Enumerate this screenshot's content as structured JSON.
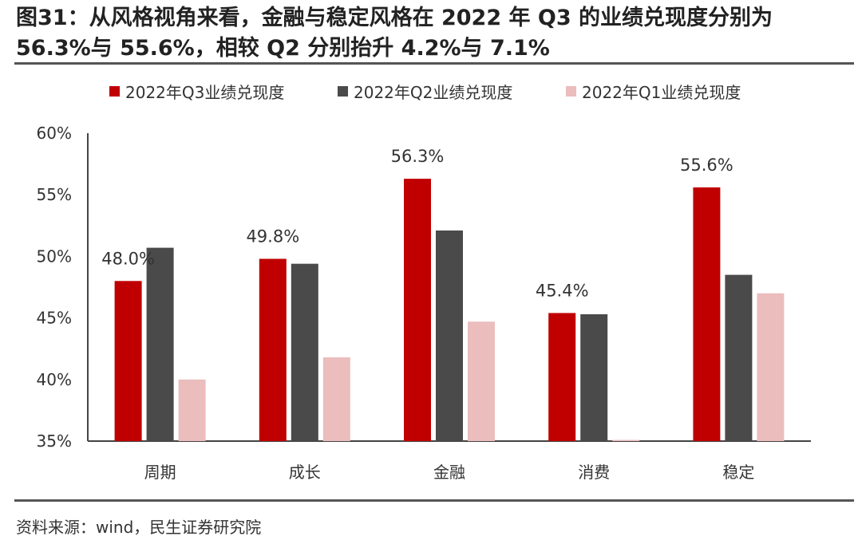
{
  "header": {
    "title": "图31：从风格视角来看，金融与稳定风格在 2022 年 Q3 的业绩兑现度分别为 56.3%与 55.6%，相较 Q2 分别抬升 4.2%与 7.1%"
  },
  "footer": {
    "source": "资料来源：wind，民生证券研究院"
  },
  "chart_data": {
    "type": "bar",
    "title": "",
    "xlabel": "",
    "ylabel": "",
    "categories": [
      "周期",
      "成长",
      "金融",
      "消费",
      "稳定"
    ],
    "series": [
      {
        "name": "2022年Q3业绩兑现度",
        "color": "#c00000",
        "values": [
          48.0,
          49.8,
          56.3,
          45.4,
          55.6
        ]
      },
      {
        "name": "2022年Q2业绩兑现度",
        "color": "#4a4a4a",
        "values": [
          50.7,
          49.4,
          52.1,
          45.3,
          48.5
        ]
      },
      {
        "name": "2022年Q1业绩兑现度",
        "color": "#ebbdbd",
        "values": [
          40.0,
          41.8,
          44.7,
          34.9,
          47.0
        ]
      }
    ],
    "data_labels": [
      {
        "series": 0,
        "category": 0,
        "text": "48.0%"
      },
      {
        "series": 0,
        "category": 1,
        "text": "49.8%"
      },
      {
        "series": 0,
        "category": 2,
        "text": "56.3%"
      },
      {
        "series": 0,
        "category": 3,
        "text": "45.4%"
      },
      {
        "series": 0,
        "category": 4,
        "text": "55.6%"
      }
    ],
    "ylim": [
      35,
      60
    ],
    "yticks": [
      "35%",
      "40%",
      "45%",
      "50%",
      "55%",
      "60%"
    ],
    "ytick_values": [
      35,
      40,
      45,
      50,
      55,
      60
    ],
    "grid": false,
    "legend_position": "top"
  }
}
